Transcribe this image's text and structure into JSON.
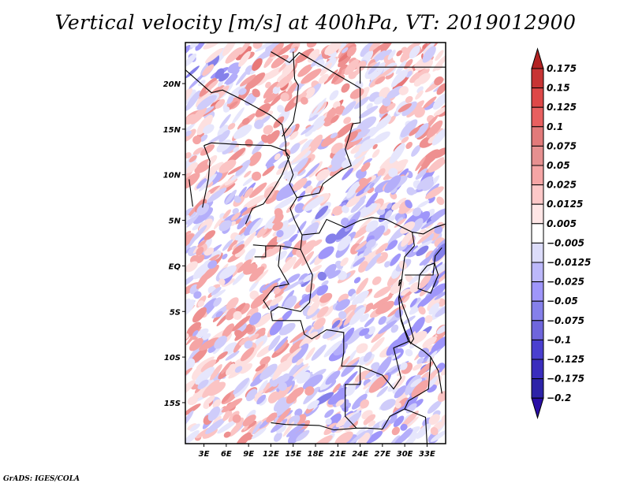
{
  "title": "Vertical velocity [m/s] at 400hPa, VT: 2019012900",
  "credit": "GrADS: IGES/COLA",
  "map": {
    "variable": "Vertical velocity",
    "units": "m/s",
    "level": "400hPa",
    "valid_time": "2019012900",
    "lat_range": [
      -19.5,
      24.5
    ],
    "lon_range": [
      0.5,
      35.5
    ],
    "lat_ticks": [
      {
        "value": 20,
        "label": "20N"
      },
      {
        "value": 15,
        "label": "15N"
      },
      {
        "value": 10,
        "label": "10N"
      },
      {
        "value": 5,
        "label": "5N"
      },
      {
        "value": 0,
        "label": "EQ"
      },
      {
        "value": -5,
        "label": "5S"
      },
      {
        "value": -10,
        "label": "10S"
      },
      {
        "value": -15,
        "label": "15S"
      }
    ],
    "lon_ticks": [
      {
        "value": 3,
        "label": "3E"
      },
      {
        "value": 6,
        "label": "6E"
      },
      {
        "value": 9,
        "label": "9E"
      },
      {
        "value": 12,
        "label": "12E"
      },
      {
        "value": 15,
        "label": "15E"
      },
      {
        "value": 18,
        "label": "18E"
      },
      {
        "value": 21,
        "label": "21E"
      },
      {
        "value": 24,
        "label": "24E"
      },
      {
        "value": 27,
        "label": "27E"
      },
      {
        "value": 30,
        "label": "30E"
      },
      {
        "value": 33,
        "label": "33E"
      }
    ]
  },
  "colorbar": {
    "levels": [
      {
        "label": "0.175",
        "color": "#b22222"
      },
      {
        "label": "0.15",
        "color": "#c73535"
      },
      {
        "label": "0.125",
        "color": "#dd4848"
      },
      {
        "label": "0.1",
        "color": "#e86060"
      },
      {
        "label": "0.075",
        "color": "#e27a7a"
      },
      {
        "label": "0.05",
        "color": "#e69090"
      },
      {
        "label": "0.025",
        "color": "#f5a5a5"
      },
      {
        "label": "0.0125",
        "color": "#fdc8c8"
      },
      {
        "label": "0.005",
        "color": "#ffe6e6"
      },
      {
        "label": "-0.005",
        "color": "#ffffff"
      },
      {
        "label": "-0.0125",
        "color": "#dcdcfa"
      },
      {
        "label": "-0.025",
        "color": "#bcb8fa"
      },
      {
        "label": "-0.05",
        "color": "#9f96fa"
      },
      {
        "label": "-0.075",
        "color": "#8580ea"
      },
      {
        "label": "-0.1",
        "color": "#6f66dc"
      },
      {
        "label": "-0.125",
        "color": "#4a3fcf"
      },
      {
        "label": "-0.175",
        "color": "#3a2dbd"
      },
      {
        "label": "-0.2",
        "color": "#2d23a8"
      }
    ],
    "top_arrow_color": "#b22222",
    "bottom_arrow_color": "#2a0ea6"
  }
}
